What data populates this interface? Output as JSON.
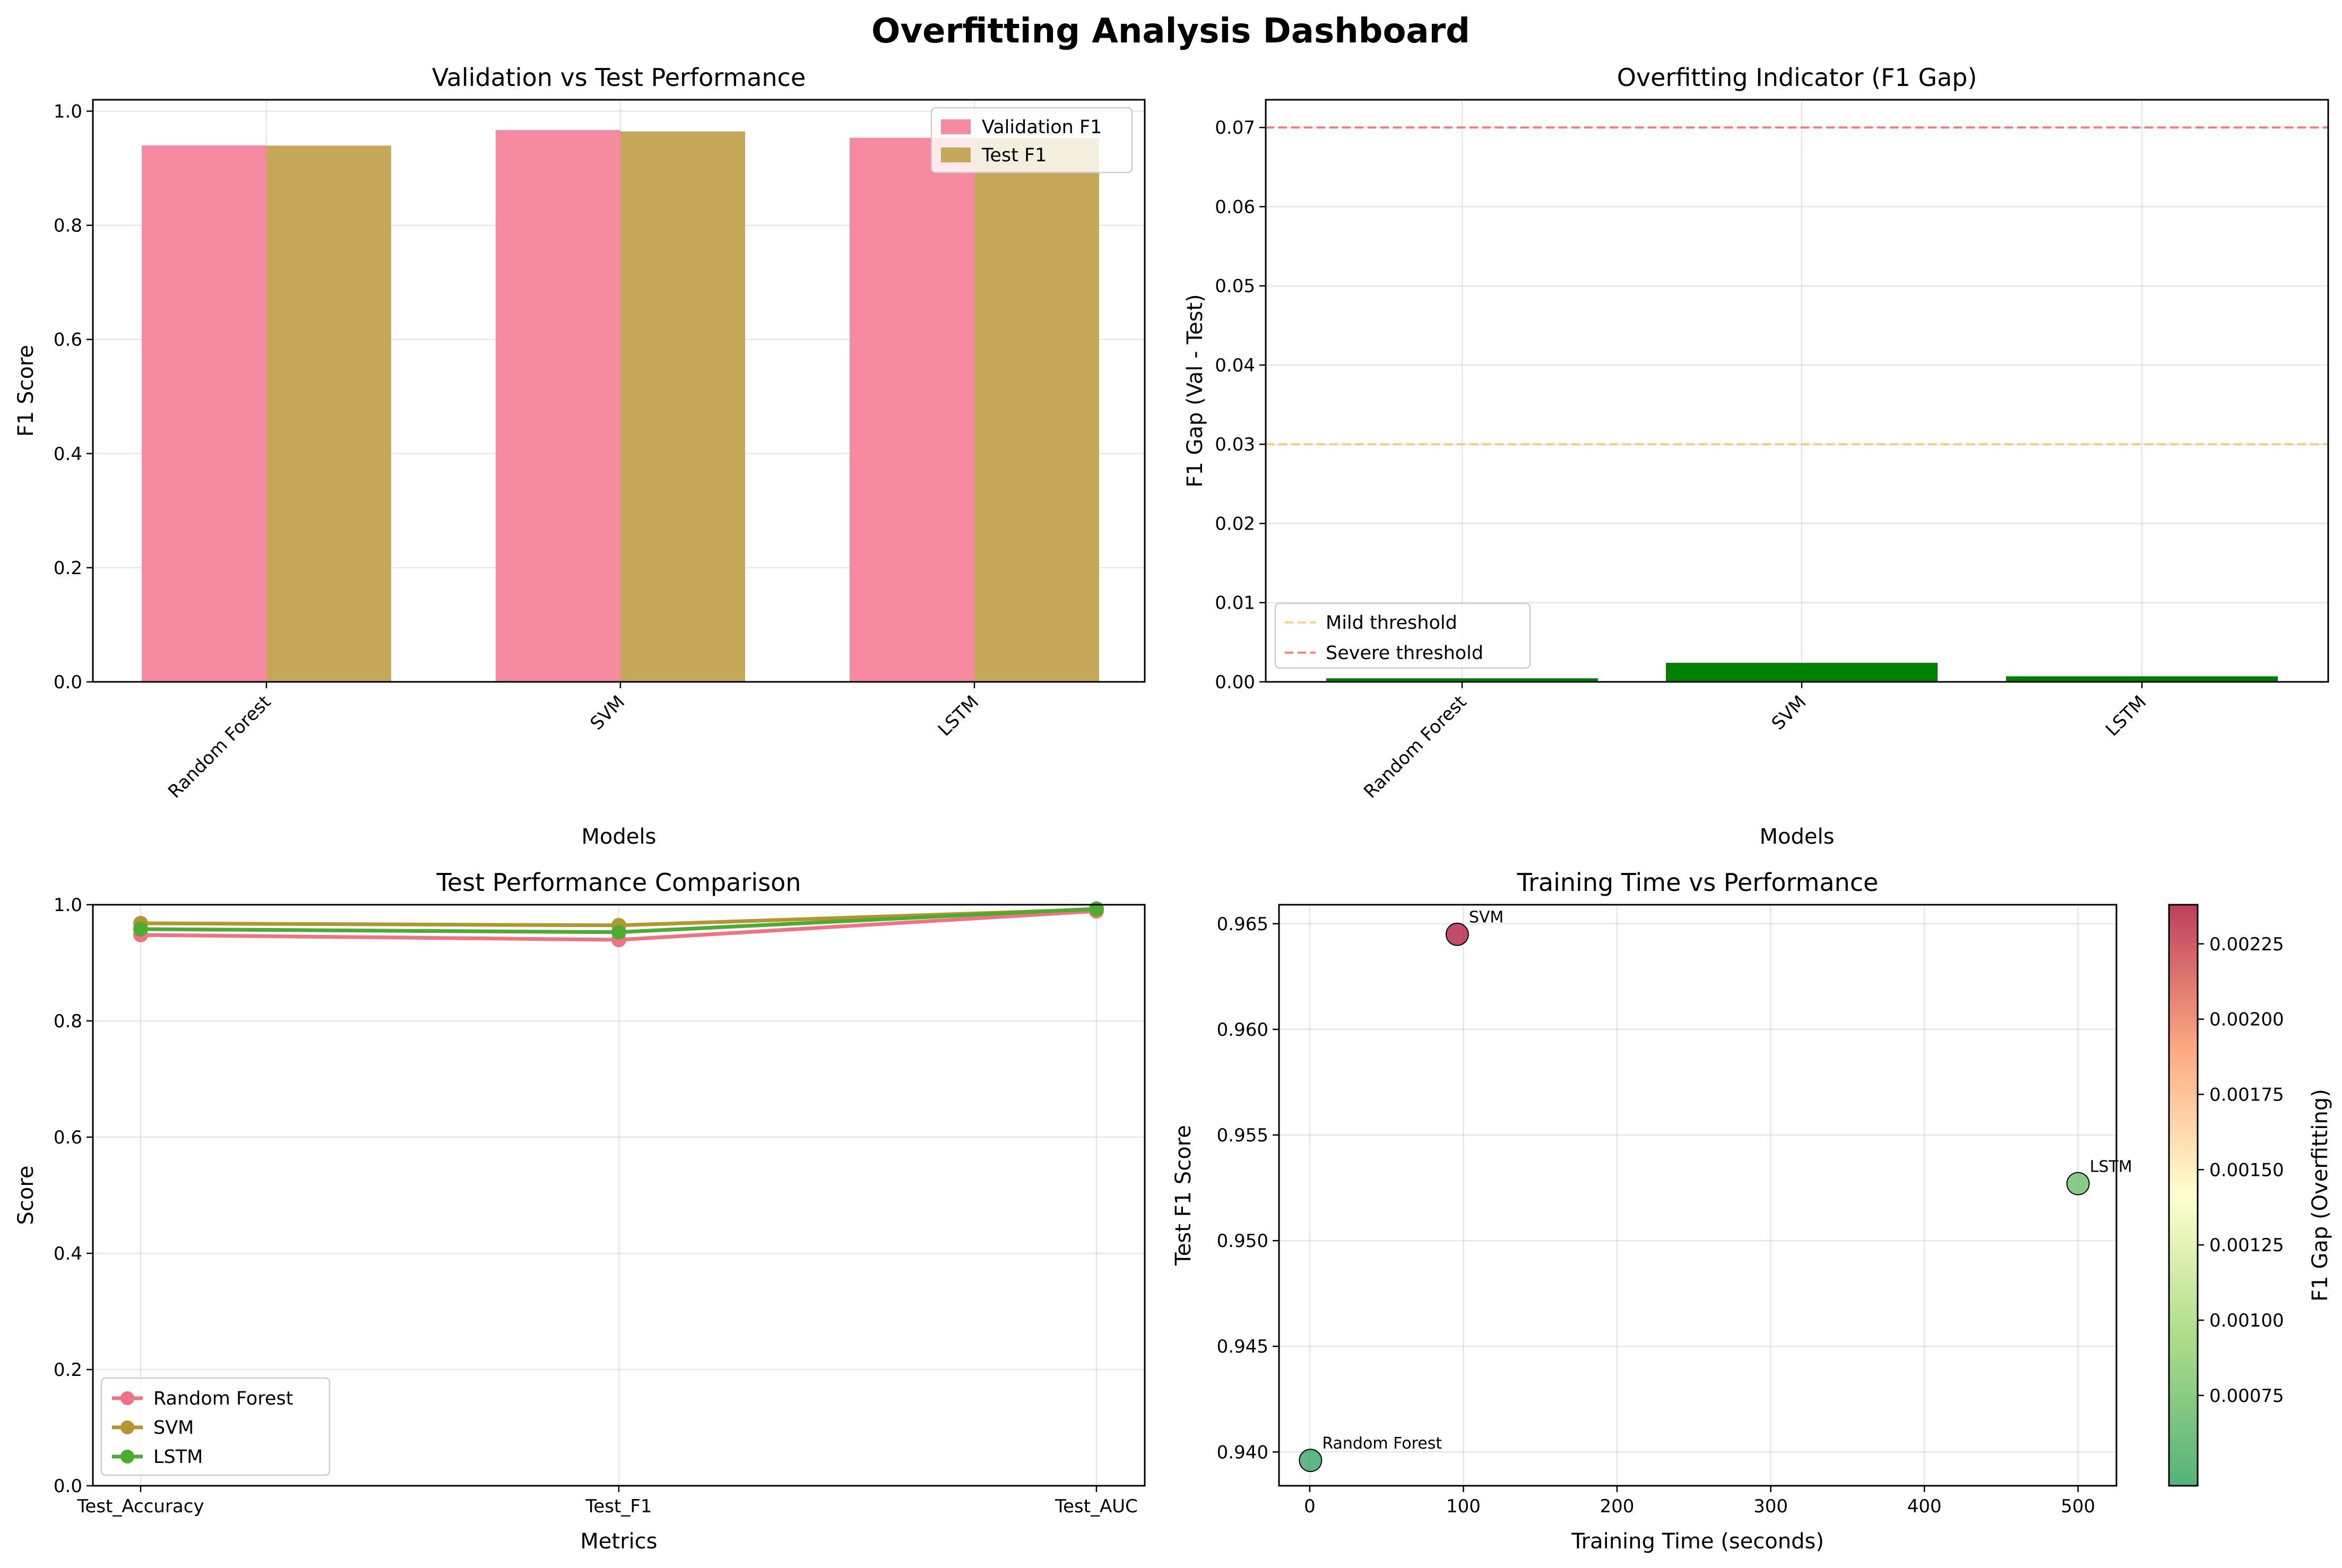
{
  "title": "Overfitting Analysis Dashboard",
  "chart_data": [
    {
      "type": "bar",
      "title": "Validation vs Test Performance",
      "xlabel": "Models",
      "ylabel": "F1 Score",
      "categories": [
        "Random Forest",
        "SVM",
        "LSTM"
      ],
      "series": [
        {
          "name": "Validation F1",
          "values": [
            0.94,
            0.9669,
            0.9534
          ],
          "color": "#f68aa0"
        },
        {
          "name": "Test F1",
          "values": [
            0.9396,
            0.9645,
            0.9527
          ],
          "color": "#c6a85b"
        }
      ],
      "ylim": [
        0,
        1.02
      ],
      "yticks": [
        "0.0",
        "0.2",
        "0.4",
        "0.6",
        "0.8",
        "1.0"
      ],
      "grid": true,
      "legend": "upper right"
    },
    {
      "type": "bar",
      "title": "Overfitting Indicator (F1 Gap)",
      "xlabel": "Models",
      "ylabel": "F1 Gap (Val - Test)",
      "categories": [
        "Random Forest",
        "SVM",
        "LSTM"
      ],
      "values": [
        0.00045,
        0.0024,
        0.0007
      ],
      "bar_color": "#008000",
      "thresholds": [
        {
          "name": "Mild threshold",
          "value": 0.03,
          "color": "#ffb627"
        },
        {
          "name": "Severe threshold",
          "value": 0.07,
          "color": "#ff3030"
        }
      ],
      "ylim": [
        0,
        0.0735
      ],
      "yticks": [
        "0.00",
        "0.01",
        "0.02",
        "0.03",
        "0.04",
        "0.05",
        "0.06",
        "0.07"
      ],
      "grid": true,
      "legend": "lower left"
    },
    {
      "type": "line",
      "title": "Test Performance Comparison",
      "xlabel": "Metrics",
      "ylabel": "Score",
      "categories": [
        "Test_Accuracy",
        "Test_F1",
        "Test_AUC"
      ],
      "series": [
        {
          "name": "Random Forest",
          "values": [
            0.948,
            0.9396,
            0.989
          ],
          "color": "#f07383"
        },
        {
          "name": "SVM",
          "values": [
            0.968,
            0.9645,
            0.992
          ],
          "color": "#b39630"
        },
        {
          "name": "LSTM",
          "values": [
            0.958,
            0.9527,
            0.993
          ],
          "color": "#4eab32"
        }
      ],
      "ylim": [
        0,
        1.0
      ],
      "yticks": [
        "0.0",
        "0.2",
        "0.4",
        "0.6",
        "0.8",
        "1.0"
      ],
      "grid": true,
      "legend": "lower left"
    },
    {
      "type": "scatter",
      "title": "Training Time vs Performance",
      "xlabel": "Training Time (seconds)",
      "ylabel": "Test F1 Score",
      "points": [
        {
          "label": "Random Forest",
          "x": 0.5,
          "y": 0.9396,
          "gap": 0.00045
        },
        {
          "label": "SVM",
          "x": 96,
          "y": 0.9645,
          "gap": 0.00238
        },
        {
          "label": "LSTM",
          "x": 500,
          "y": 0.9527,
          "gap": 0.0007
        }
      ],
      "xlim": [
        -20,
        525
      ],
      "ylim": [
        0.9384,
        0.9659
      ],
      "xticks": [
        "0",
        "100",
        "200",
        "300",
        "400",
        "500"
      ],
      "yticks": [
        "0.940",
        "0.945",
        "0.950",
        "0.955",
        "0.960",
        "0.965"
      ],
      "colorbar": {
        "label": "F1 Gap (Overfitting)",
        "min": 0.00045,
        "max": 0.00238,
        "ticks": [
          "0.00075",
          "0.00100",
          "0.00125",
          "0.00150",
          "0.00175",
          "0.00200",
          "0.00225"
        ],
        "colormap": "RdYlGn_r"
      },
      "grid": true
    }
  ]
}
